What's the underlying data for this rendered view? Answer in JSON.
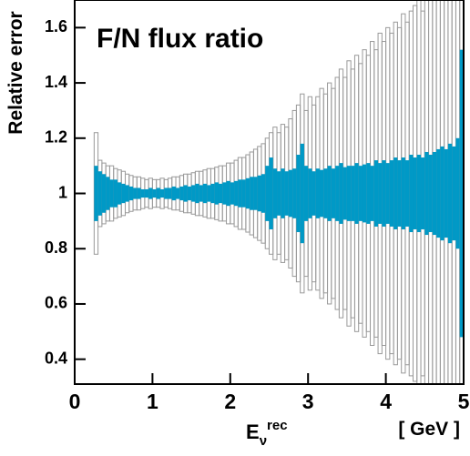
{
  "chart_data": {
    "type": "error_band",
    "title": "F/N flux ratio",
    "y_label": "Relative error",
    "x_label": {
      "base": "E",
      "sub": "ν",
      "sup": "rec",
      "unit": "[ GeV ]"
    },
    "xlim": [
      0,
      5
    ],
    "ylim": [
      0.31,
      1.7
    ],
    "xticks": [
      0,
      1,
      2,
      3,
      4,
      5
    ],
    "yticks": [
      0.4,
      0.6,
      0.8,
      1,
      1.2,
      1.4,
      1.6
    ],
    "center": 1,
    "bins": [
      0.25,
      0.3,
      0.35,
      0.4,
      0.45,
      0.5,
      0.55,
      0.6,
      0.65,
      0.7,
      0.75,
      0.8,
      0.85,
      0.9,
      0.95,
      1.0,
      1.05,
      1.1,
      1.15,
      1.2,
      1.25,
      1.3,
      1.35,
      1.4,
      1.45,
      1.5,
      1.55,
      1.6,
      1.65,
      1.7,
      1.75,
      1.8,
      1.85,
      1.9,
      1.95,
      2.0,
      2.05,
      2.1,
      2.15,
      2.2,
      2.25,
      2.3,
      2.35,
      2.4,
      2.45,
      2.5,
      2.55,
      2.6,
      2.65,
      2.7,
      2.75,
      2.8,
      2.85,
      2.9,
      2.95,
      3.0,
      3.05,
      3.1,
      3.15,
      3.2,
      3.25,
      3.3,
      3.35,
      3.4,
      3.45,
      3.5,
      3.55,
      3.6,
      3.65,
      3.7,
      3.75,
      3.8,
      3.85,
      3.9,
      3.95,
      4.0,
      4.05,
      4.1,
      4.15,
      4.2,
      4.25,
      4.3,
      4.35,
      4.4,
      4.45,
      4.5,
      4.55,
      4.6,
      4.65,
      4.7,
      4.75,
      4.8,
      4.85,
      4.9,
      4.95,
      5.0
    ],
    "series": [
      {
        "color": "#999999",
        "fill": "none",
        "errors": [
          0.22,
          0.12,
          0.11,
          0.1,
          0.1,
          0.09,
          0.085,
          0.08,
          0.07,
          0.065,
          0.06,
          0.06,
          0.055,
          0.05,
          0.055,
          0.05,
          0.05,
          0.055,
          0.05,
          0.055,
          0.06,
          0.06,
          0.065,
          0.07,
          0.07,
          0.075,
          0.08,
          0.08,
          0.085,
          0.09,
          0.09,
          0.095,
          0.1,
          0.1,
          0.11,
          0.11,
          0.12,
          0.13,
          0.13,
          0.14,
          0.15,
          0.16,
          0.17,
          0.18,
          0.2,
          0.22,
          0.24,
          0.22,
          0.25,
          0.24,
          0.27,
          0.3,
          0.32,
          0.36,
          0.3,
          0.35,
          0.32,
          0.35,
          0.38,
          0.36,
          0.4,
          0.38,
          0.42,
          0.45,
          0.42,
          0.48,
          0.45,
          0.5,
          0.47,
          0.52,
          0.5,
          0.55,
          0.52,
          0.58,
          0.55,
          0.6,
          0.58,
          0.62,
          0.6,
          0.65,
          0.62,
          0.66,
          0.68,
          0.7,
          0.66,
          0.72,
          0.7,
          0.75,
          0.72,
          0.75,
          0.78,
          0.75,
          0.8,
          0.75,
          0.8
        ]
      },
      {
        "color": "#0099c6",
        "fill": "solid",
        "errors": [
          0.1,
          0.08,
          0.07,
          0.06,
          0.05,
          0.05,
          0.04,
          0.035,
          0.03,
          0.025,
          0.02,
          0.02,
          0.015,
          0.015,
          0.02,
          0.015,
          0.02,
          0.015,
          0.02,
          0.02,
          0.025,
          0.02,
          0.025,
          0.03,
          0.025,
          0.03,
          0.035,
          0.03,
          0.035,
          0.03,
          0.035,
          0.04,
          0.035,
          0.04,
          0.045,
          0.04,
          0.045,
          0.05,
          0.05,
          0.055,
          0.06,
          0.06,
          0.065,
          0.07,
          0.1,
          0.13,
          0.09,
          0.08,
          0.09,
          0.08,
          0.085,
          0.09,
          0.14,
          0.18,
          0.1,
          0.09,
          0.08,
          0.09,
          0.085,
          0.09,
          0.1,
          0.09,
          0.1,
          0.11,
          0.095,
          0.1,
          0.1,
          0.11,
          0.1,
          0.105,
          0.11,
          0.1,
          0.12,
          0.11,
          0.12,
          0.11,
          0.12,
          0.13,
          0.12,
          0.13,
          0.12,
          0.14,
          0.13,
          0.14,
          0.13,
          0.15,
          0.14,
          0.15,
          0.16,
          0.17,
          0.16,
          0.18,
          0.17,
          0.2,
          0.52
        ]
      }
    ]
  }
}
